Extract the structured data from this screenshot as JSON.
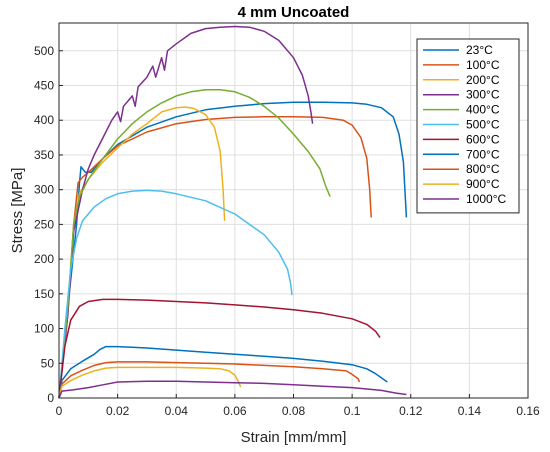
{
  "chart_data": {
    "type": "line",
    "title": "4 mm Uncoated",
    "xlabel": "Strain [mm/mm]",
    "ylabel": "Stress [MPa]",
    "xlim": [
      0,
      0.16
    ],
    "ylim": [
      0,
      540
    ],
    "xticks": [
      0,
      0.02,
      0.04,
      0.06,
      0.08,
      0.1,
      0.12,
      0.14,
      0.16
    ],
    "xtick_labels": [
      "0",
      "0.02",
      "0.04",
      "0.06",
      "0.08",
      "0.1",
      "0.12",
      "0.14",
      "0.16"
    ],
    "yticks": [
      0,
      50,
      100,
      150,
      200,
      250,
      300,
      350,
      400,
      450,
      500
    ],
    "ytick_labels": [
      "0",
      "50",
      "100",
      "150",
      "200",
      "250",
      "300",
      "350",
      "400",
      "450",
      "500"
    ],
    "grid": true,
    "legend_position": "top-right",
    "series": [
      {
        "name": "23°C",
        "color": "#0072BD",
        "points": [
          [
            0,
            0
          ],
          [
            0.003,
            130
          ],
          [
            0.006,
            250
          ],
          [
            0.007,
            310
          ],
          [
            0.0075,
            333
          ],
          [
            0.009,
            325
          ],
          [
            0.011,
            325
          ],
          [
            0.012,
            330
          ],
          [
            0.015,
            345
          ],
          [
            0.02,
            365
          ],
          [
            0.03,
            390
          ],
          [
            0.04,
            405
          ],
          [
            0.05,
            415
          ],
          [
            0.06,
            420
          ],
          [
            0.07,
            424
          ],
          [
            0.08,
            426
          ],
          [
            0.09,
            426
          ],
          [
            0.1,
            425
          ],
          [
            0.105,
            423
          ],
          [
            0.11,
            418
          ],
          [
            0.114,
            405
          ],
          [
            0.116,
            380
          ],
          [
            0.1175,
            340
          ],
          [
            0.118,
            300
          ],
          [
            0.1185,
            260
          ]
        ]
      },
      {
        "name": "100°C",
        "color": "#D95319",
        "points": [
          [
            0,
            0
          ],
          [
            0.003,
            120
          ],
          [
            0.005,
            250
          ],
          [
            0.0065,
            310
          ],
          [
            0.008,
            318
          ],
          [
            0.01,
            325
          ],
          [
            0.015,
            345
          ],
          [
            0.02,
            363
          ],
          [
            0.03,
            383
          ],
          [
            0.04,
            395
          ],
          [
            0.05,
            401
          ],
          [
            0.06,
            404
          ],
          [
            0.07,
            405
          ],
          [
            0.08,
            405
          ],
          [
            0.09,
            404
          ],
          [
            0.097,
            400
          ],
          [
            0.1,
            393
          ],
          [
            0.103,
            375
          ],
          [
            0.105,
            345
          ],
          [
            0.106,
            300
          ],
          [
            0.1065,
            260
          ]
        ]
      },
      {
        "name": "200°C",
        "color": "#EDB120",
        "points": [
          [
            0,
            0
          ],
          [
            0.003,
            130
          ],
          [
            0.005,
            250
          ],
          [
            0.007,
            295
          ],
          [
            0.01,
            315
          ],
          [
            0.015,
            340
          ],
          [
            0.02,
            360
          ],
          [
            0.025,
            380
          ],
          [
            0.03,
            395
          ],
          [
            0.035,
            412
          ],
          [
            0.04,
            418
          ],
          [
            0.043,
            419
          ],
          [
            0.046,
            417
          ],
          [
            0.05,
            408
          ],
          [
            0.053,
            390
          ],
          [
            0.055,
            355
          ],
          [
            0.056,
            300
          ],
          [
            0.0565,
            255
          ]
        ]
      },
      {
        "name": "300°C",
        "color": "#7E2F8E",
        "points": [
          [
            0,
            0
          ],
          [
            0.003,
            120
          ],
          [
            0.005,
            240
          ],
          [
            0.008,
            300
          ],
          [
            0.01,
            330
          ],
          [
            0.012,
            350
          ],
          [
            0.015,
            375
          ],
          [
            0.018,
            400
          ],
          [
            0.02,
            412
          ],
          [
            0.021,
            398
          ],
          [
            0.022,
            420
          ],
          [
            0.025,
            435
          ],
          [
            0.026,
            420
          ],
          [
            0.027,
            448
          ],
          [
            0.03,
            462
          ],
          [
            0.032,
            478
          ],
          [
            0.033,
            462
          ],
          [
            0.035,
            490
          ],
          [
            0.036,
            472
          ],
          [
            0.037,
            500
          ],
          [
            0.04,
            510
          ],
          [
            0.045,
            525
          ],
          [
            0.05,
            532
          ],
          [
            0.055,
            534
          ],
          [
            0.06,
            535
          ],
          [
            0.065,
            534
          ],
          [
            0.07,
            528
          ],
          [
            0.075,
            515
          ],
          [
            0.08,
            490
          ],
          [
            0.083,
            465
          ],
          [
            0.085,
            435
          ],
          [
            0.086,
            410
          ],
          [
            0.0865,
            395
          ]
        ]
      },
      {
        "name": "400°C",
        "color": "#77AC30",
        "points": [
          [
            0,
            0
          ],
          [
            0.003,
            130
          ],
          [
            0.005,
            250
          ],
          [
            0.007,
            290
          ],
          [
            0.01,
            315
          ],
          [
            0.015,
            345
          ],
          [
            0.02,
            373
          ],
          [
            0.025,
            395
          ],
          [
            0.03,
            412
          ],
          [
            0.035,
            425
          ],
          [
            0.04,
            435
          ],
          [
            0.045,
            441
          ],
          [
            0.05,
            444
          ],
          [
            0.055,
            444
          ],
          [
            0.06,
            441
          ],
          [
            0.065,
            433
          ],
          [
            0.07,
            420
          ],
          [
            0.075,
            403
          ],
          [
            0.08,
            380
          ],
          [
            0.085,
            355
          ],
          [
            0.089,
            330
          ],
          [
            0.091,
            305
          ],
          [
            0.0925,
            290
          ]
        ]
      },
      {
        "name": "500°C",
        "color": "#4DBEEE",
        "points": [
          [
            0,
            0
          ],
          [
            0.002,
            100
          ],
          [
            0.004,
            185
          ],
          [
            0.006,
            230
          ],
          [
            0.008,
            255
          ],
          [
            0.012,
            275
          ],
          [
            0.016,
            287
          ],
          [
            0.02,
            294
          ],
          [
            0.025,
            298
          ],
          [
            0.03,
            299
          ],
          [
            0.035,
            298
          ],
          [
            0.04,
            294
          ],
          [
            0.05,
            284
          ],
          [
            0.06,
            265
          ],
          [
            0.07,
            235
          ],
          [
            0.075,
            210
          ],
          [
            0.078,
            185
          ],
          [
            0.079,
            165
          ],
          [
            0.0795,
            148
          ]
        ]
      },
      {
        "name": "600°C",
        "color": "#A2142F",
        "points": [
          [
            0,
            0
          ],
          [
            0.002,
            75
          ],
          [
            0.004,
            112
          ],
          [
            0.007,
            132
          ],
          [
            0.01,
            139
          ],
          [
            0.015,
            142
          ],
          [
            0.02,
            142
          ],
          [
            0.03,
            141
          ],
          [
            0.04,
            139
          ],
          [
            0.05,
            137
          ],
          [
            0.06,
            134
          ],
          [
            0.07,
            131
          ],
          [
            0.08,
            127
          ],
          [
            0.09,
            122
          ],
          [
            0.1,
            114
          ],
          [
            0.105,
            106
          ],
          [
            0.108,
            96
          ],
          [
            0.1095,
            87
          ]
        ]
      },
      {
        "name": "700°C",
        "color": "#0072BD",
        "points": [
          [
            0,
            0
          ],
          [
            0.001,
            25
          ],
          [
            0.004,
            42
          ],
          [
            0.008,
            53
          ],
          [
            0.012,
            63
          ],
          [
            0.014,
            70
          ],
          [
            0.016,
            74
          ],
          [
            0.02,
            74
          ],
          [
            0.03,
            72
          ],
          [
            0.04,
            69
          ],
          [
            0.05,
            66
          ],
          [
            0.06,
            63
          ],
          [
            0.07,
            60
          ],
          [
            0.08,
            57
          ],
          [
            0.09,
            53
          ],
          [
            0.1,
            48
          ],
          [
            0.105,
            42
          ],
          [
            0.108,
            35
          ],
          [
            0.11,
            29
          ],
          [
            0.112,
            23
          ]
        ]
      },
      {
        "name": "800°C",
        "color": "#D95319",
        "points": [
          [
            0,
            0
          ],
          [
            0.001,
            20
          ],
          [
            0.004,
            32
          ],
          [
            0.008,
            40
          ],
          [
            0.012,
            47
          ],
          [
            0.016,
            51
          ],
          [
            0.02,
            52
          ],
          [
            0.03,
            52
          ],
          [
            0.04,
            51
          ],
          [
            0.05,
            50
          ],
          [
            0.06,
            49
          ],
          [
            0.07,
            47
          ],
          [
            0.08,
            45
          ],
          [
            0.09,
            42
          ],
          [
            0.098,
            39
          ],
          [
            0.1,
            34
          ],
          [
            0.102,
            28
          ],
          [
            0.1025,
            23
          ]
        ]
      },
      {
        "name": "900°C",
        "color": "#EDB120",
        "points": [
          [
            0,
            0
          ],
          [
            0.001,
            17
          ],
          [
            0.004,
            25
          ],
          [
            0.008,
            33
          ],
          [
            0.012,
            39
          ],
          [
            0.016,
            43
          ],
          [
            0.02,
            44
          ],
          [
            0.03,
            44
          ],
          [
            0.04,
            44
          ],
          [
            0.05,
            43
          ],
          [
            0.055,
            42
          ],
          [
            0.058,
            39
          ],
          [
            0.06,
            33
          ],
          [
            0.061,
            25
          ],
          [
            0.062,
            16
          ]
        ]
      },
      {
        "name": "1000°C",
        "color": "#7E2F8E",
        "points": [
          [
            0,
            0
          ],
          [
            0.001,
            10
          ],
          [
            0.005,
            12
          ],
          [
            0.01,
            15
          ],
          [
            0.015,
            19
          ],
          [
            0.02,
            23
          ],
          [
            0.03,
            24
          ],
          [
            0.04,
            24
          ],
          [
            0.05,
            23
          ],
          [
            0.06,
            22
          ],
          [
            0.07,
            21
          ],
          [
            0.08,
            19
          ],
          [
            0.09,
            17
          ],
          [
            0.1,
            15
          ],
          [
            0.11,
            11
          ],
          [
            0.115,
            7
          ],
          [
            0.1185,
            5
          ]
        ]
      }
    ]
  }
}
